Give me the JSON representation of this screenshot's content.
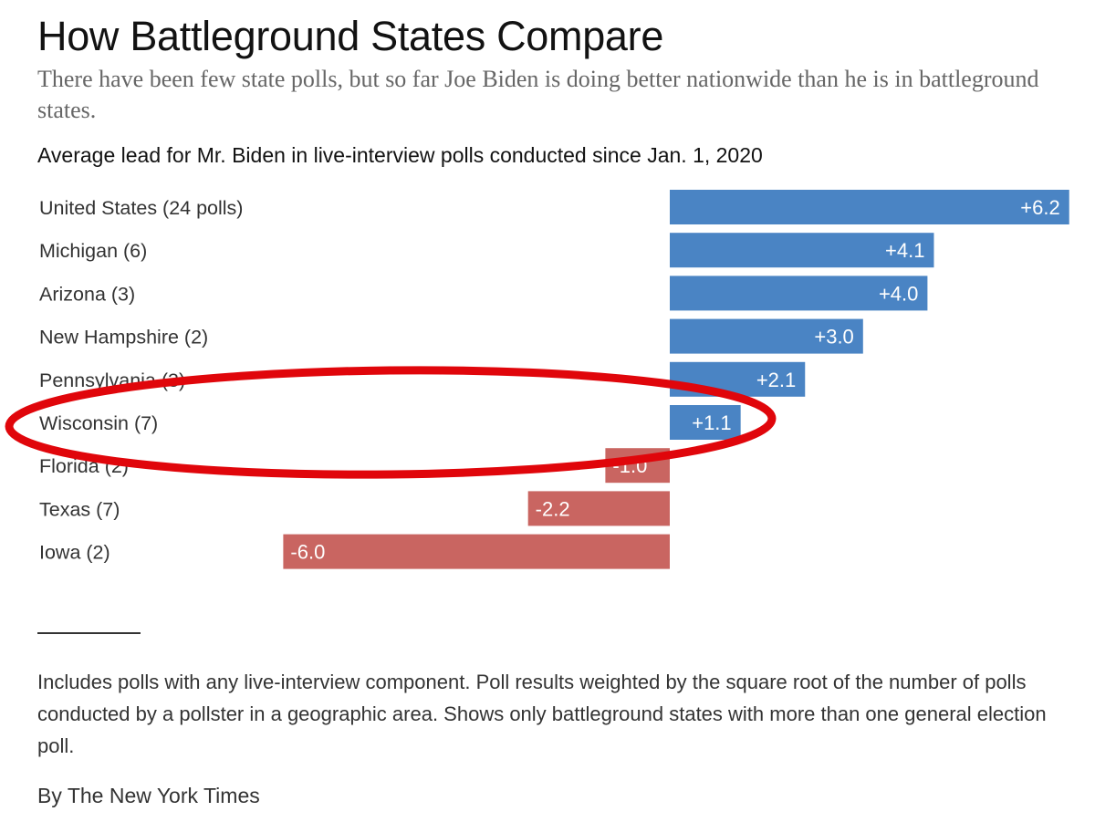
{
  "title": "How Battleground States Compare",
  "subtitle": "There have been few state polls, but so far Joe Biden is doing better nationwide than he is in battleground states.",
  "chart_heading": "Average lead for Mr. Biden in live-interview polls conducted since Jan. 1, 2020",
  "colors": {
    "positive": "#4a84c4",
    "negative": "#c96561",
    "annotation": "#e0060b"
  },
  "chart_data": {
    "type": "bar",
    "orientation": "horizontal",
    "title": "Average lead for Mr. Biden in live-interview polls conducted since Jan. 1, 2020",
    "categories": [
      "United States (24 polls)",
      "Michigan (6)",
      "Arizona (3)",
      "New Hampshire (2)",
      "Pennsylvania (3)",
      "Wisconsin (7)",
      "Florida (2)",
      "Texas (7)",
      "Iowa (2)"
    ],
    "values": [
      6.2,
      4.1,
      4.0,
      3.0,
      2.1,
      1.1,
      -1.0,
      -2.2,
      -6.0
    ],
    "labels": [
      "+6.2",
      "+4.1",
      "+4.0",
      "+3.0",
      "+2.1",
      "+1.1",
      "-1.0",
      "-2.2",
      "-6.0"
    ],
    "xlim": [
      -6.0,
      6.2
    ],
    "grid": false,
    "annotation": {
      "type": "ellipse",
      "highlights": [
        "Wisconsin (7)"
      ]
    }
  },
  "note": "Includes polls with any live-interview component. Poll results weighted by the square root of the number of polls conducted by a pollster in a geographic area. Shows only battleground states with more than one general election poll.",
  "credit": "By The New York Times"
}
